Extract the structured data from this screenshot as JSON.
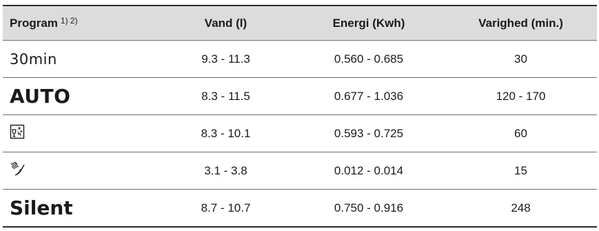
{
  "table": {
    "headers": {
      "program": "Program",
      "program_footnotes": "1) 2)",
      "water": "Vand (l)",
      "energy": "Energi (Kwh)",
      "duration": "Varighed (min.)"
    },
    "rows": [
      {
        "program": "30min",
        "water": "9.3 - 11.3",
        "energy": "0.560 - 0.685",
        "duration": "30"
      },
      {
        "program": "AUTO",
        "water": "8.3 - 11.5",
        "energy": "0.677 - 1.036",
        "duration": "120 - 170"
      },
      {
        "program_icon": "glass-sparkle-icon",
        "water": "8.3 - 10.1",
        "energy": "0.593 - 0.725",
        "duration": "60"
      },
      {
        "program_icon": "rinse-spray-icon",
        "water": "3.1 - 3.8",
        "energy": "0.012 - 0.014",
        "duration": "15"
      },
      {
        "program": "Silent",
        "water": "8.7 - 10.7",
        "energy": "0.750 - 0.916",
        "duration": "248"
      }
    ]
  },
  "colors": {
    "header_bg": "#dcdcdc",
    "rule": "#2b2b2b",
    "divider": "#6e6e6e"
  }
}
